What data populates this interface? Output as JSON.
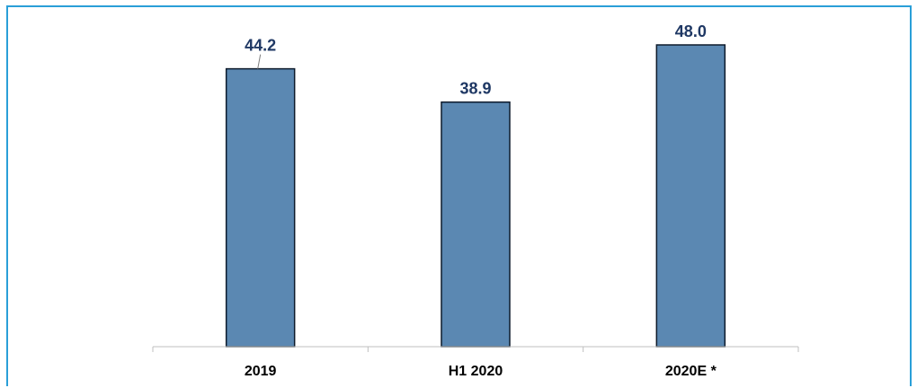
{
  "chart_data": {
    "type": "bar",
    "categories": [
      "2019",
      "H1 2020",
      "2020E *"
    ],
    "values": [
      44.2,
      38.9,
      48.0
    ],
    "value_labels": [
      "44.2",
      "38.9",
      "48.0"
    ],
    "title": "",
    "xlabel": "",
    "ylabel": "",
    "ylim": [
      0,
      50
    ],
    "grid": false,
    "legend": "none"
  },
  "colors": {
    "bar_fill": "#5b88b2",
    "bar_stroke": "#0d1a2b",
    "value_label": "#1f3864",
    "frame_border": "#2a9fd8",
    "axis": "#bfbfbf"
  }
}
